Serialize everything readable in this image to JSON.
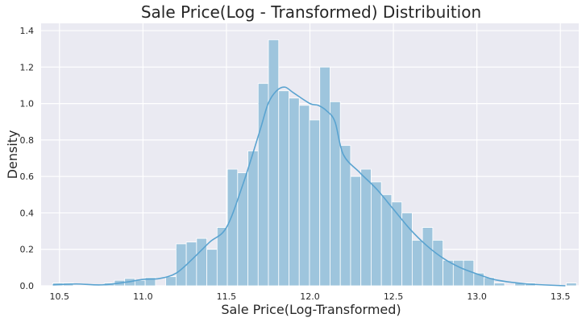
{
  "chart_data": {
    "type": "bar",
    "title": "Sale Price(Log - Transformed) Distribuition",
    "xlabel": "Sale Price(Log-Transformed)",
    "ylabel": "Density",
    "xlim": [
      10.39,
      13.61
    ],
    "ylim": [
      0,
      1.44
    ],
    "x_ticks": [
      10.5,
      11.0,
      11.5,
      12.0,
      12.5,
      13.0,
      13.5
    ],
    "x_tick_labels": [
      "10.5",
      "11.0",
      "11.5",
      "12.0",
      "12.5",
      "13.0",
      "13.5"
    ],
    "y_ticks": [
      0.0,
      0.2,
      0.4,
      0.6,
      0.8,
      1.0,
      1.2,
      1.4
    ],
    "y_tick_labels": [
      "0.0",
      "0.2",
      "0.4",
      "0.6",
      "0.8",
      "1.0",
      "1.2",
      "1.4"
    ],
    "grid": true,
    "histogram": {
      "bin_start": 10.46,
      "bin_width": 0.0615,
      "densities": [
        0.015,
        0.015,
        0.0,
        0.0,
        0.0,
        0.015,
        0.03,
        0.04,
        0.03,
        0.045,
        0.0,
        0.05,
        0.23,
        0.24,
        0.26,
        0.2,
        0.32,
        0.64,
        0.62,
        0.74,
        1.11,
        1.35,
        1.07,
        1.03,
        0.99,
        0.91,
        1.2,
        1.01,
        0.77,
        0.6,
        0.64,
        0.57,
        0.5,
        0.46,
        0.4,
        0.25,
        0.32,
        0.25,
        0.14,
        0.14,
        0.14,
        0.07,
        0.045,
        0.015,
        0.0,
        0.015,
        0.015,
        0.0,
        0.0,
        0.0,
        0.015
      ],
      "color": "#9ec5dd"
    },
    "kde": {
      "x": [
        10.46,
        10.6,
        10.75,
        10.9,
        11.0,
        11.1,
        11.2,
        11.3,
        11.4,
        11.5,
        11.6,
        11.7,
        11.75,
        11.8,
        11.85,
        11.9,
        12.0,
        12.05,
        12.1,
        12.15,
        12.2,
        12.3,
        12.4,
        12.5,
        12.6,
        12.7,
        12.8,
        12.9,
        13.0,
        13.1,
        13.2,
        13.3,
        13.4,
        13.53
      ],
      "y": [
        0.005,
        0.01,
        0.005,
        0.02,
        0.035,
        0.04,
        0.07,
        0.15,
        0.24,
        0.32,
        0.56,
        0.85,
        1.0,
        1.07,
        1.09,
        1.06,
        1.0,
        0.99,
        0.96,
        0.9,
        0.72,
        0.62,
        0.53,
        0.42,
        0.31,
        0.22,
        0.15,
        0.1,
        0.065,
        0.035,
        0.02,
        0.01,
        0.005,
        0.0
      ],
      "color": "#5aa3d0"
    },
    "colors": {
      "plot_background": "#eaeaf2",
      "grid": "#ffffff"
    }
  }
}
